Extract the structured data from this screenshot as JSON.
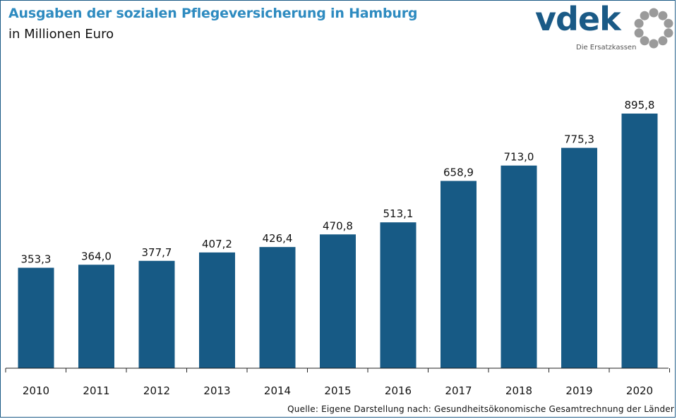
{
  "header": {
    "title": "Ausgaben der sozialen Pflegeversicherung in Hamburg",
    "subtitle": "in Millionen Euro"
  },
  "logo": {
    "wordmark": "vdek",
    "tagline": "Die Ersatzkassen",
    "icon": "ring-of-dots-icon"
  },
  "footer": {
    "source": "Quelle: Eigene Darstellung nach: Gesundheitsökonomische Gesamtrechnung der Länder"
  },
  "colors": {
    "bar": "#175a85",
    "title": "#2e8bc0",
    "axis": "#222222",
    "logo": "#1a5a86",
    "logo_dots": "#9a9a9a"
  },
  "chart_data": {
    "type": "bar",
    "categories": [
      "2010",
      "2011",
      "2012",
      "2013",
      "2014",
      "2015",
      "2016",
      "2017",
      "2018",
      "2019",
      "2020"
    ],
    "values": [
      353.3,
      364.0,
      377.7,
      407.2,
      426.4,
      470.8,
      513.1,
      658.9,
      713.0,
      775.3,
      895.8
    ],
    "value_labels": [
      "353,3",
      "364,0",
      "377,7",
      "407,2",
      "426,4",
      "470,8",
      "513,1",
      "658,9",
      "713,0",
      "775,3",
      "895,8"
    ],
    "ylim": [
      0,
      1000
    ],
    "grid": false,
    "legend": "none"
  }
}
